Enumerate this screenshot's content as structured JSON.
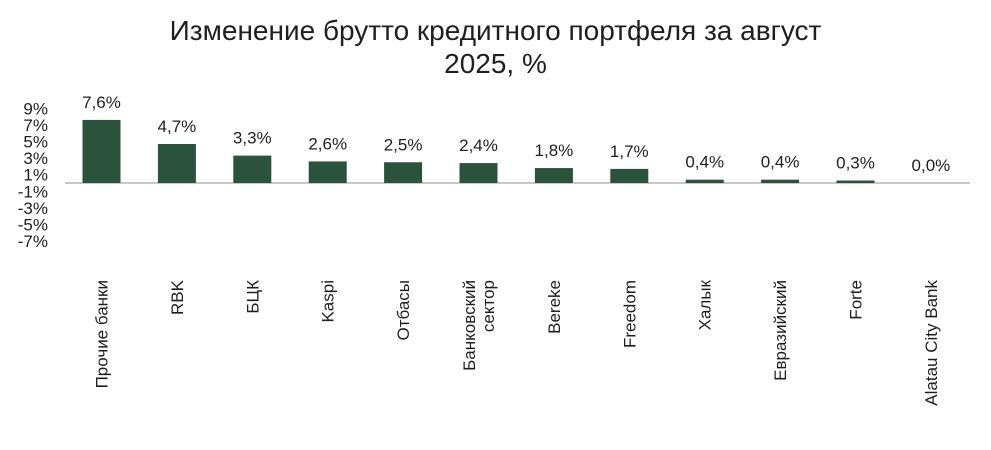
{
  "chart_data": {
    "type": "bar",
    "title": "Изменение брутто кредитного портфеля за август\n2025, %",
    "categories": [
      "Прочие банки",
      "RBK",
      "БЦК",
      "Kaspi",
      "Отбасы",
      "Банковский\nсектор",
      "Bereke",
      "Freedom",
      "Халык",
      "Евразийский",
      "Forte",
      "Alatau City Bank"
    ],
    "values": [
      7.6,
      4.7,
      3.3,
      2.6,
      2.5,
      2.4,
      1.8,
      1.7,
      0.4,
      0.4,
      0.3,
      0.0
    ],
    "data_labels": [
      "7,6%",
      "4,7%",
      "3,3%",
      "2,6%",
      "2,5%",
      "2,4%",
      "1,8%",
      "1,7%",
      "0,4%",
      "0,4%",
      "0,3%",
      "0,0%"
    ],
    "y_ticks": [
      9,
      7,
      5,
      3,
      1,
      -1,
      -3,
      -5,
      -7
    ],
    "y_tick_labels": [
      "9%",
      "7%",
      "5%",
      "3%",
      "1%",
      "-1%",
      "-3%",
      "-5%",
      "-7%"
    ],
    "ylim": [
      -7,
      9
    ],
    "xlabel": "",
    "ylabel": "",
    "grid": false,
    "legend": "none",
    "colors": {
      "bar": "#2a523c",
      "axis": "#c8c8c8",
      "text": "#1f1f1f"
    }
  }
}
